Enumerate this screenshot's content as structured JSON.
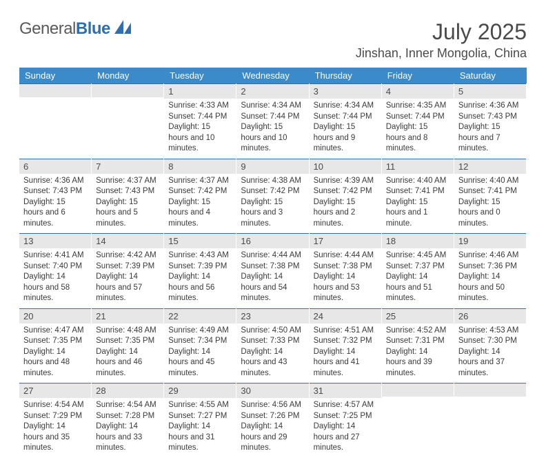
{
  "brand": {
    "text_gray": "General",
    "text_blue": "Blue"
  },
  "title": "July 2025",
  "location": "Jinshan, Inner Mongolia, China",
  "colors": {
    "header_bg": "#3b8bca",
    "header_border": "#2f6fb0",
    "daynum_bg": "#e7e7e7",
    "text": "#3a3a3a",
    "title_text": "#4a4a4a"
  },
  "weekdays": [
    "Sunday",
    "Monday",
    "Tuesday",
    "Wednesday",
    "Thursday",
    "Friday",
    "Saturday"
  ],
  "weeks": [
    [
      null,
      null,
      {
        "n": "1",
        "sr": "4:33 AM",
        "ss": "7:44 PM",
        "dl": "15 hours and 10 minutes."
      },
      {
        "n": "2",
        "sr": "4:34 AM",
        "ss": "7:44 PM",
        "dl": "15 hours and 10 minutes."
      },
      {
        "n": "3",
        "sr": "4:34 AM",
        "ss": "7:44 PM",
        "dl": "15 hours and 9 minutes."
      },
      {
        "n": "4",
        "sr": "4:35 AM",
        "ss": "7:44 PM",
        "dl": "15 hours and 8 minutes."
      },
      {
        "n": "5",
        "sr": "4:36 AM",
        "ss": "7:43 PM",
        "dl": "15 hours and 7 minutes."
      }
    ],
    [
      {
        "n": "6",
        "sr": "4:36 AM",
        "ss": "7:43 PM",
        "dl": "15 hours and 6 minutes."
      },
      {
        "n": "7",
        "sr": "4:37 AM",
        "ss": "7:43 PM",
        "dl": "15 hours and 5 minutes."
      },
      {
        "n": "8",
        "sr": "4:37 AM",
        "ss": "7:42 PM",
        "dl": "15 hours and 4 minutes."
      },
      {
        "n": "9",
        "sr": "4:38 AM",
        "ss": "7:42 PM",
        "dl": "15 hours and 3 minutes."
      },
      {
        "n": "10",
        "sr": "4:39 AM",
        "ss": "7:42 PM",
        "dl": "15 hours and 2 minutes."
      },
      {
        "n": "11",
        "sr": "4:40 AM",
        "ss": "7:41 PM",
        "dl": "15 hours and 1 minute."
      },
      {
        "n": "12",
        "sr": "4:40 AM",
        "ss": "7:41 PM",
        "dl": "15 hours and 0 minutes."
      }
    ],
    [
      {
        "n": "13",
        "sr": "4:41 AM",
        "ss": "7:40 PM",
        "dl": "14 hours and 58 minutes."
      },
      {
        "n": "14",
        "sr": "4:42 AM",
        "ss": "7:39 PM",
        "dl": "14 hours and 57 minutes."
      },
      {
        "n": "15",
        "sr": "4:43 AM",
        "ss": "7:39 PM",
        "dl": "14 hours and 56 minutes."
      },
      {
        "n": "16",
        "sr": "4:44 AM",
        "ss": "7:38 PM",
        "dl": "14 hours and 54 minutes."
      },
      {
        "n": "17",
        "sr": "4:44 AM",
        "ss": "7:38 PM",
        "dl": "14 hours and 53 minutes."
      },
      {
        "n": "18",
        "sr": "4:45 AM",
        "ss": "7:37 PM",
        "dl": "14 hours and 51 minutes."
      },
      {
        "n": "19",
        "sr": "4:46 AM",
        "ss": "7:36 PM",
        "dl": "14 hours and 50 minutes."
      }
    ],
    [
      {
        "n": "20",
        "sr": "4:47 AM",
        "ss": "7:35 PM",
        "dl": "14 hours and 48 minutes."
      },
      {
        "n": "21",
        "sr": "4:48 AM",
        "ss": "7:35 PM",
        "dl": "14 hours and 46 minutes."
      },
      {
        "n": "22",
        "sr": "4:49 AM",
        "ss": "7:34 PM",
        "dl": "14 hours and 45 minutes."
      },
      {
        "n": "23",
        "sr": "4:50 AM",
        "ss": "7:33 PM",
        "dl": "14 hours and 43 minutes."
      },
      {
        "n": "24",
        "sr": "4:51 AM",
        "ss": "7:32 PM",
        "dl": "14 hours and 41 minutes."
      },
      {
        "n": "25",
        "sr": "4:52 AM",
        "ss": "7:31 PM",
        "dl": "14 hours and 39 minutes."
      },
      {
        "n": "26",
        "sr": "4:53 AM",
        "ss": "7:30 PM",
        "dl": "14 hours and 37 minutes."
      }
    ],
    [
      {
        "n": "27",
        "sr": "4:54 AM",
        "ss": "7:29 PM",
        "dl": "14 hours and 35 minutes."
      },
      {
        "n": "28",
        "sr": "4:54 AM",
        "ss": "7:28 PM",
        "dl": "14 hours and 33 minutes."
      },
      {
        "n": "29",
        "sr": "4:55 AM",
        "ss": "7:27 PM",
        "dl": "14 hours and 31 minutes."
      },
      {
        "n": "30",
        "sr": "4:56 AM",
        "ss": "7:26 PM",
        "dl": "14 hours and 29 minutes."
      },
      {
        "n": "31",
        "sr": "4:57 AM",
        "ss": "7:25 PM",
        "dl": "14 hours and 27 minutes."
      },
      null,
      null
    ]
  ]
}
